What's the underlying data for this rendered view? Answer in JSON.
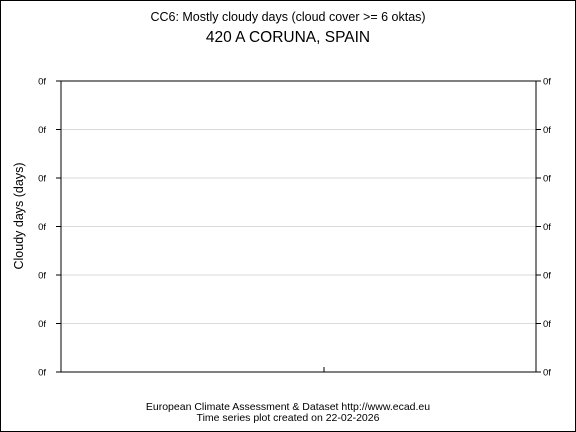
{
  "chart_data": {
    "type": "line",
    "title": "CC6: Mostly cloudy days (cloud cover >= 6 oktas)",
    "subtitle": "420 A CORUNA, SPAIN",
    "ylabel": "Cloudy days (days)",
    "xlabel": "",
    "y_tick_labels": [
      "0f",
      "0f",
      "0f",
      "0f",
      "0f",
      "0f",
      "0f"
    ],
    "grid": true,
    "series": [],
    "footer": {
      "line1": "European Climate Assessment & Dataset  http://www.ecad.eu",
      "line2": "Time series plot created on 22-02-2026"
    },
    "colors": {
      "axis": "#000000",
      "grid": "#d9d9d9"
    }
  }
}
